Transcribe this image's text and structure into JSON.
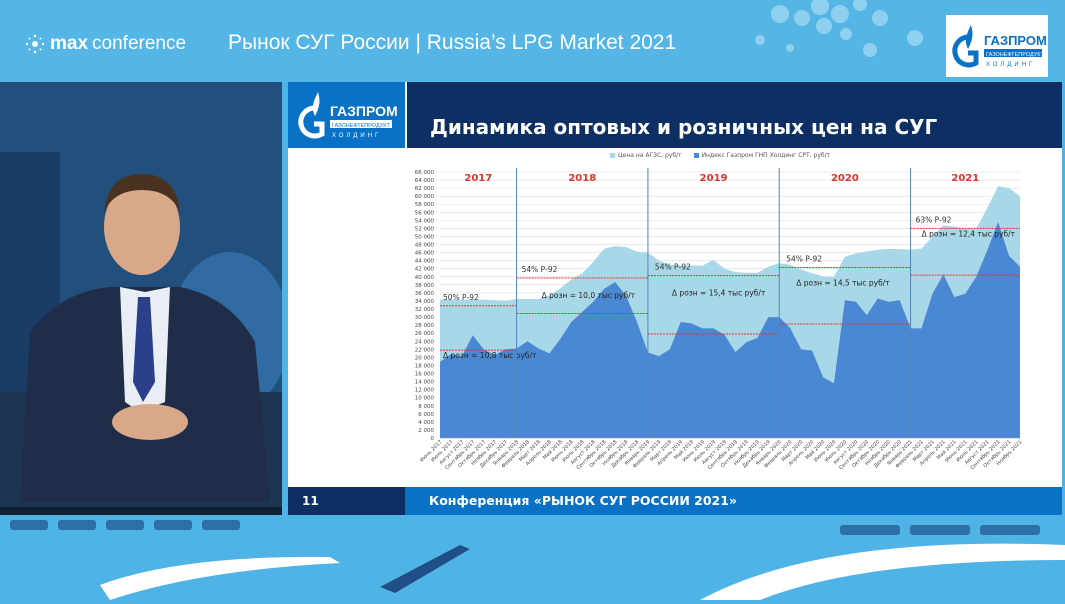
{
  "header": {
    "brand_bold": "max",
    "brand_light": "conference",
    "title": "Рынок СУГ России | Russia’s LPG Market  2021",
    "logo_text": "ГАЗПРОМ ГАЗОНЕФТЕПРОДУКТ ХОЛДИНГ"
  },
  "slide": {
    "logo_text": "ГАЗПРОМ ГАЗОНЕФТЕПРОДУКТ ХОЛДИНГ",
    "title": "Динамика оптовых и розничных цен на СУГ",
    "page_number": "11",
    "footer": "Конференция «РЫНОК СУГ РОССИИ 2021»"
  },
  "colors": {
    "retail": "#a8d8e8",
    "wholesale": "#4a88d4",
    "reference_line": "#e0322a",
    "year_label": "#e0322a",
    "divider": "#4f86c0"
  },
  "chart_data": {
    "type": "area",
    "title": "",
    "xlabel": "",
    "ylabel": "",
    "ylim": [
      0,
      66000
    ],
    "yticks": [
      "0",
      "2 000",
      "4 000",
      "6 000",
      "8 000",
      "10 000",
      "12 000",
      "14 000",
      "16 000",
      "18 000",
      "20 000",
      "22 000",
      "24 000",
      "26 000",
      "28 000",
      "30 000",
      "32 000",
      "34 000",
      "36 000",
      "38 000",
      "40 000",
      "42 000",
      "44 000",
      "46 000",
      "48 000",
      "50 000",
      "52 000",
      "54 000",
      "56 000",
      "58 000",
      "60 000",
      "62 000",
      "64 000",
      "66 000"
    ],
    "grid": true,
    "legend_position": "top-right",
    "categories": [
      "Июнь 2017",
      "Июль 2017",
      "Август 2017",
      "Сентябрь 2017",
      "Октябрь 2017",
      "Ноябрь 2017",
      "Декабрь 2017",
      "Январь 2018",
      "Февраль 2018",
      "Март 2018",
      "Апрель 2018",
      "Май 2018",
      "Июнь 2018",
      "Июль 2018",
      "Август 2018",
      "Сентябрь 2018",
      "Октябрь 2018",
      "Ноябрь 2018",
      "Декабрь 2018",
      "Январь 2019",
      "Февраль 2019",
      "Март 2019",
      "Апрель 2019",
      "Май 2019",
      "Июнь 2019",
      "Июль 2019",
      "Август 2019",
      "Сентябрь 2019",
      "Октябрь 2019",
      "Ноябрь 2019",
      "Декабрь 2019",
      "Январь 2020",
      "Февраль 2020",
      "Март 2020",
      "Апрель 2020",
      "Май 2020",
      "Июнь 2020",
      "Июль 2020",
      "Август 2020",
      "Сентябрь 2020",
      "Октябрь 2020",
      "Ноябрь 2020",
      "Декабрь 2020",
      "Январь 2021",
      "Февраль 2021",
      "Март 2021",
      "Апрель 2021",
      "Май 2021",
      "Июнь 2021",
      "Июль 2021",
      "Август 2021",
      "Сентябрь 2021",
      "Октябрь 2021",
      "Ноябрь 2021"
    ],
    "series": [
      {
        "name": "Цена на АГЗС, руб/т",
        "values": [
          34300,
          34300,
          34300,
          34300,
          34300,
          34200,
          34100,
          34500,
          34500,
          34500,
          35300,
          37200,
          39300,
          40900,
          43700,
          47000,
          47600,
          47400,
          46200,
          46000,
          44000,
          43000,
          42800,
          42800,
          42800,
          44200,
          42000,
          41200,
          41000,
          41000,
          42500,
          43400,
          43000,
          41800,
          40900,
          40100,
          40000,
          45000,
          45800,
          46300,
          46700,
          46900,
          46900,
          46700,
          47000,
          50000,
          52800,
          52400,
          52000,
          52000,
          57000,
          62500,
          62000,
          60000
        ]
      },
      {
        "name": "Индекс Газпром ГНП Холдинг СРТ, руб/т",
        "values": [
          18900,
          20800,
          20300,
          25500,
          22000,
          20600,
          22000,
          22200,
          24000,
          22200,
          21000,
          24600,
          28800,
          31300,
          33800,
          37000,
          38700,
          35300,
          28800,
          21200,
          20300,
          22000,
          28800,
          28400,
          27200,
          27200,
          25600,
          21300,
          23800,
          24800,
          30000,
          30000,
          27300,
          22000,
          21700,
          15100,
          13600,
          34200,
          33800,
          30500,
          34600,
          33800,
          34200,
          27200,
          27200,
          35800,
          40600,
          35000,
          35800,
          40000,
          46500,
          53600,
          45200,
          42500
        ]
      }
    ],
    "years": [
      {
        "label": "2017",
        "start": "Июнь 2017",
        "ref_upper": 32800,
        "ref_lower": 21800,
        "share_label": "50% Р-92",
        "delta_label": "Δ розн = 10,8 тыс руб/т"
      },
      {
        "label": "2018",
        "start": "Январь 2018",
        "ref_upper": 39700,
        "ref_lower": 30900,
        "share_label": "54% Р-92",
        "delta_label": "Δ розн = 10,0 тыс руб/т"
      },
      {
        "label": "2019",
        "start": "Январь 2019",
        "ref_upper": 40300,
        "ref_lower": 25800,
        "share_label": "54% Р-92",
        "delta_label": "Δ розн = 15,4 тыс руб/т"
      },
      {
        "label": "2020",
        "start": "Январь 2020",
        "ref_upper": 42300,
        "ref_lower": 28300,
        "share_label": "54% Р-92",
        "delta_label": "Δ розн = 14,5 тыс руб/т"
      },
      {
        "label": "2021",
        "start": "Январь 2021",
        "ref_upper": 52000,
        "ref_lower": 40400,
        "share_label": "63% Р-92",
        "delta_label": "Δ розн = 12,4 тыс руб/т"
      }
    ]
  }
}
